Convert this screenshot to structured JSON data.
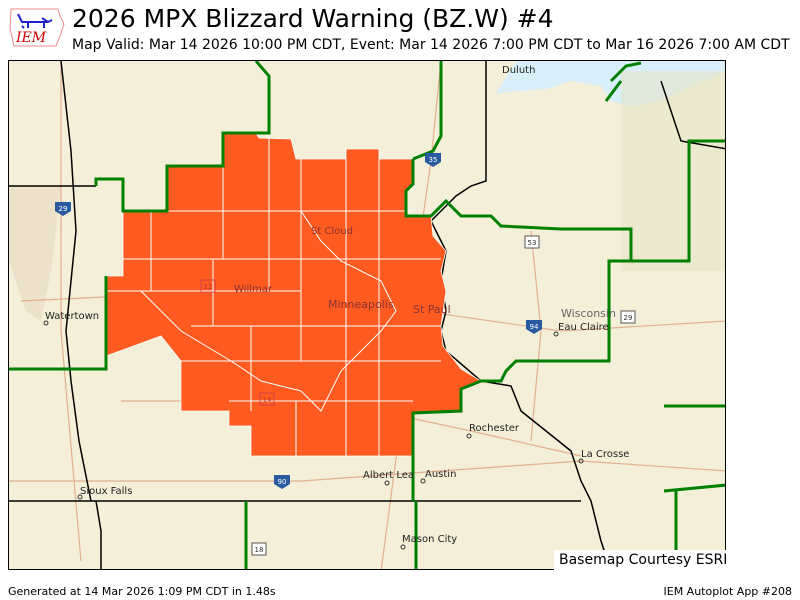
{
  "header": {
    "logo_text": "IEM",
    "title": "2026 MPX  Blizzard Warning (BZ.W) #4",
    "subtitle": "Map Valid: Mar 14 2026 10:00 PM CDT, Event: Mar 14 2026 7:00 PM CDT to Mar 16 2026 7:00 AM CDT"
  },
  "map": {
    "warning_color": "#ff5a1f",
    "cwa_border_color": "#008000",
    "water_color": "#d8eef8",
    "cities": [
      {
        "name": "Duluth"
      },
      {
        "name": "St Cloud"
      },
      {
        "name": "Willmar"
      },
      {
        "name": "Minneapolis"
      },
      {
        "name": "St Paul"
      },
      {
        "name": "Watertown"
      },
      {
        "name": "Wisconsin"
      },
      {
        "name": "Eau Claire"
      },
      {
        "name": "Rochester"
      },
      {
        "name": "La Crosse"
      },
      {
        "name": "Albert Lea"
      },
      {
        "name": "Austin"
      },
      {
        "name": "Sioux Falls"
      },
      {
        "name": "Mason City"
      }
    ],
    "highways": [
      "35",
      "29",
      "53",
      "94",
      "29",
      "12",
      "14",
      "90",
      "18"
    ],
    "credit": "Basemap Courtesy ESRI"
  },
  "footer": {
    "generated": "Generated at 14 Mar 2026 1:09 PM CDT in 1.48s",
    "app": "IEM Autoplot App #208"
  }
}
